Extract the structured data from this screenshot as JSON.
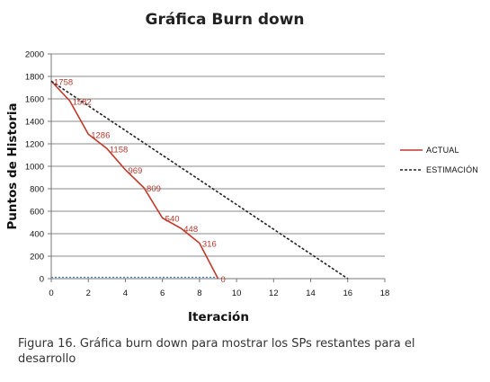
{
  "chart_data": {
    "type": "line",
    "title": "Gráfica Burn down",
    "xlabel": "Iteración",
    "ylabel": "Puntos de Historia",
    "xlim": [
      0,
      18
    ],
    "ylim": [
      0,
      2000
    ],
    "xticks": [
      0,
      2,
      4,
      6,
      8,
      10,
      12,
      14,
      16,
      18
    ],
    "yticks": [
      0,
      200,
      400,
      600,
      800,
      1000,
      1200,
      1400,
      1600,
      1800,
      2000
    ],
    "grid": true,
    "legend": "right",
    "series": [
      {
        "name": "ACTUAL",
        "color": "#c0392b",
        "style": "solid",
        "x": [
          0,
          1,
          2,
          3,
          4,
          5,
          6,
          7,
          8,
          9
        ],
        "values": [
          1758,
          1582,
          1286,
          1158,
          969,
          809,
          540,
          448,
          316,
          0
        ],
        "labels": [
          "1758",
          "1582",
          "1286",
          "1158",
          "969",
          "809",
          "540",
          "448",
          "316",
          "0"
        ]
      },
      {
        "name": "ESTIMACIÓN",
        "color": "#222222",
        "style": "dashed",
        "x": [
          0,
          16
        ],
        "values": [
          1758,
          0
        ]
      }
    ]
  },
  "caption": "Figura 16. Gráfica burn down para mostrar los SPs restantes para el desarrollo"
}
